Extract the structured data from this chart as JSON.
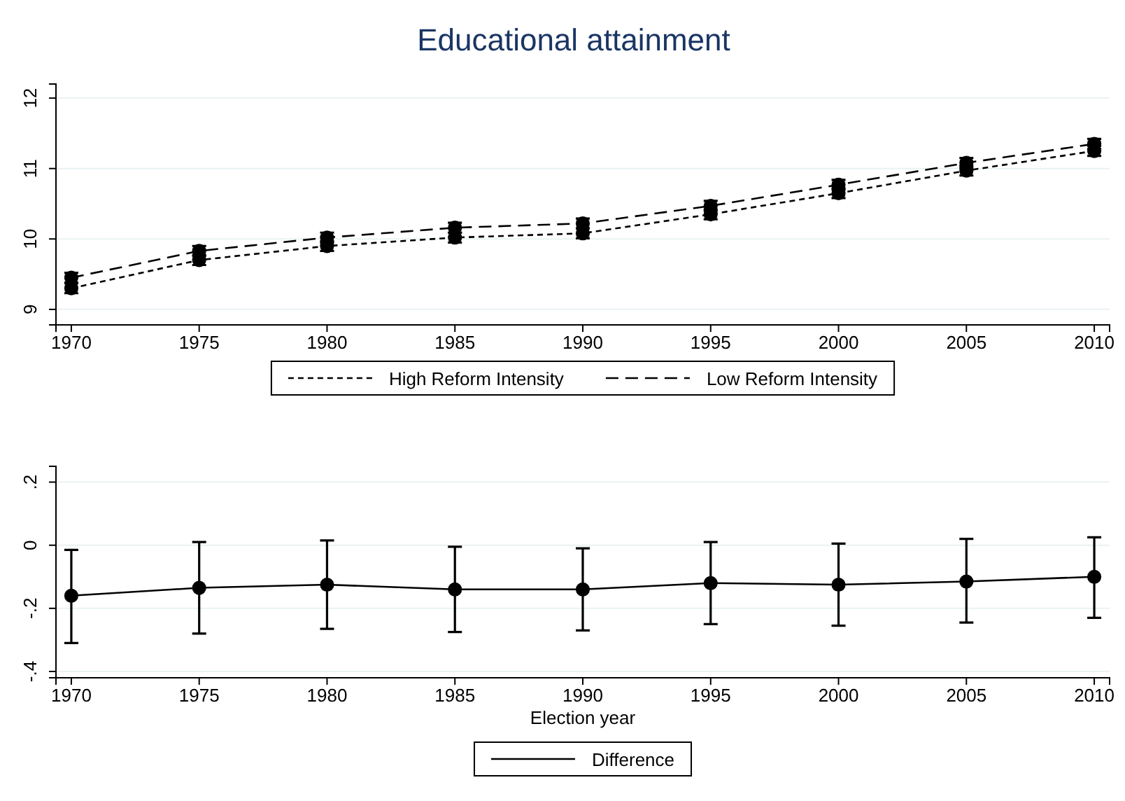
{
  "chart_data": [
    {
      "type": "line",
      "title": "Educational attainment",
      "x": [
        1970,
        1975,
        1980,
        1985,
        1990,
        1995,
        2000,
        2005,
        2010
      ],
      "series": [
        {
          "name": "High Reform Intensity",
          "color": "#000000",
          "line_style": "dotted",
          "values": [
            9.3,
            9.7,
            9.9,
            10.02,
            10.08,
            10.35,
            10.65,
            10.97,
            11.25
          ],
          "errors": [
            0.07,
            0.07,
            0.07,
            0.07,
            0.07,
            0.07,
            0.07,
            0.07,
            0.07
          ]
        },
        {
          "name": "Low Reform Intensity",
          "color": "#000000",
          "line_style": "dashed",
          "values": [
            9.45,
            9.83,
            10.02,
            10.16,
            10.22,
            10.47,
            10.77,
            11.08,
            11.35
          ],
          "errors": [
            0.07,
            0.07,
            0.07,
            0.07,
            0.07,
            0.07,
            0.07,
            0.07,
            0.07
          ]
        }
      ],
      "xlim": [
        1969.4,
        2010.6
      ],
      "xticks": [
        1970,
        1975,
        1980,
        1985,
        1990,
        1995,
        2000,
        2005,
        2010
      ],
      "ylim": [
        8.78,
        12.2
      ],
      "yticks": [
        9,
        10,
        11,
        12
      ],
      "grid": "y",
      "legend": "bottom",
      "marker": "circle"
    },
    {
      "type": "line",
      "xlabel": "Election year",
      "x": [
        1970,
        1975,
        1980,
        1985,
        1990,
        1995,
        2000,
        2005,
        2010
      ],
      "series": [
        {
          "name": "Difference",
          "color": "#000000",
          "line_style": "solid",
          "values": [
            -0.16,
            -0.135,
            -0.125,
            -0.14,
            -0.14,
            -0.12,
            -0.125,
            -0.115,
            -0.1
          ],
          "errors": [
            [
              -0.31,
              -0.015
            ],
            [
              -0.28,
              0.01
            ],
            [
              -0.265,
              0.015
            ],
            [
              -0.275,
              -0.005
            ],
            [
              -0.27,
              -0.01
            ],
            [
              -0.25,
              0.01
            ],
            [
              -0.255,
              0.005
            ],
            [
              -0.245,
              0.02
            ],
            [
              -0.23,
              0.025
            ]
          ]
        }
      ],
      "xlim": [
        1969.4,
        2010.6
      ],
      "xticks": [
        1970,
        1975,
        1980,
        1985,
        1990,
        1995,
        2000,
        2005,
        2010
      ],
      "ylim": [
        -0.42,
        0.25
      ],
      "yticks": [
        {
          "value": -0.4,
          "label": "-.4"
        },
        {
          "value": -0.2,
          "label": "-.2"
        },
        0,
        {
          "value": 0.2,
          "label": ".2"
        }
      ],
      "grid": "y",
      "legend": "bottom",
      "marker": "circle"
    }
  ]
}
